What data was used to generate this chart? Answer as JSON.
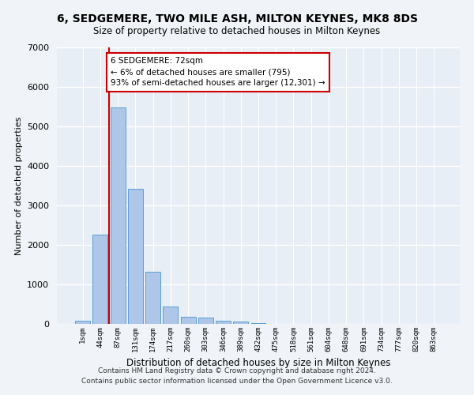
{
  "title": "6, SEDGEMERE, TWO MILE ASH, MILTON KEYNES, MK8 8DS",
  "subtitle": "Size of property relative to detached houses in Milton Keynes",
  "xlabel": "Distribution of detached houses by size in Milton Keynes",
  "ylabel": "Number of detached properties",
  "footnote1": "Contains HM Land Registry data © Crown copyright and database right 2024.",
  "footnote2": "Contains public sector information licensed under the Open Government Licence v3.0.",
  "bar_labels": [
    "1sqm",
    "44sqm",
    "87sqm",
    "131sqm",
    "174sqm",
    "217sqm",
    "260sqm",
    "303sqm",
    "346sqm",
    "389sqm",
    "432sqm",
    "475sqm",
    "518sqm",
    "561sqm",
    "604sqm",
    "648sqm",
    "691sqm",
    "734sqm",
    "777sqm",
    "820sqm",
    "863sqm"
  ],
  "bar_values": [
    80,
    2270,
    5490,
    3430,
    1330,
    450,
    190,
    160,
    85,
    60,
    20,
    10,
    5,
    2,
    1,
    1,
    1,
    1,
    1,
    1,
    1
  ],
  "bar_color": "#aec6e8",
  "bar_edge_color": "#5a9fd4",
  "bg_color": "#e8eef5",
  "fig_bg_color": "#f0f4f8",
  "grid_color": "#ffffff",
  "annotation_text": "6 SEDGEMERE: 72sqm\n← 6% of detached houses are smaller (795)\n93% of semi-detached houses are larger (12,301) →",
  "vline_color": "#cc0000",
  "annotation_box_color": "#ffffff",
  "annotation_box_edge": "#cc0000",
  "ylim": [
    0,
    7000
  ],
  "yticks": [
    0,
    1000,
    2000,
    3000,
    4000,
    5000,
    6000,
    7000
  ]
}
